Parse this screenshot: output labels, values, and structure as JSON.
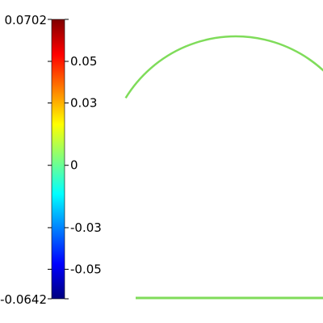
{
  "colorbar": {
    "max_label": "0.0702",
    "min_label": "-0.0642",
    "max_value": 0.0702,
    "min_value": -0.0642,
    "ticks": [
      {
        "label": "0.05",
        "value": 0.05
      },
      {
        "label": "0.03",
        "value": 0.03
      },
      {
        "label": "0",
        "value": 0
      },
      {
        "label": "-0.03",
        "value": -0.03
      },
      {
        "label": "-0.05",
        "value": -0.05
      }
    ],
    "colormap": [
      "#00007f",
      "#0000ff",
      "#007fff",
      "#00ffff",
      "#7fff7f",
      "#ffff00",
      "#ff7f00",
      "#ff0000",
      "#7f0000"
    ]
  },
  "field": {
    "domain_fill": "#d4d2cc",
    "domain_shape": "dome",
    "description_colors": {
      "rim": "#7fdc5a",
      "bottom_center": "#ff5a1e",
      "bottom_corners": "#1e1ec8",
      "left_rim": "#e67832"
    }
  }
}
